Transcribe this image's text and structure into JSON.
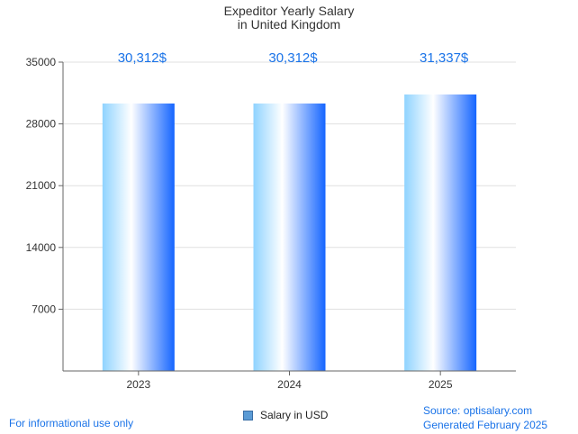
{
  "chart_data": {
    "type": "bar",
    "title_lines": [
      "Expeditor Yearly Salary",
      "in United Kingdom"
    ],
    "categories": [
      "2023",
      "2024",
      "2025"
    ],
    "values": [
      30312,
      30312,
      31337
    ],
    "value_labels": [
      "30,312$",
      "30,312$",
      "31,337$"
    ],
    "yticks": [
      7000,
      14000,
      21000,
      28000,
      35000
    ],
    "ylim": [
      0,
      35000
    ],
    "grid": true,
    "legend": {
      "position": "bottom",
      "entries": [
        "Salary in USD"
      ]
    },
    "colors": {
      "bar_edge": "#1565ff",
      "bar_light": "#8fd3ff",
      "bar_center": "#ffffff",
      "label": "#1a73e8"
    }
  },
  "footer": {
    "left": "For informational use only",
    "source": "Source: optisalary.com",
    "generated": "Generated February 2025"
  }
}
